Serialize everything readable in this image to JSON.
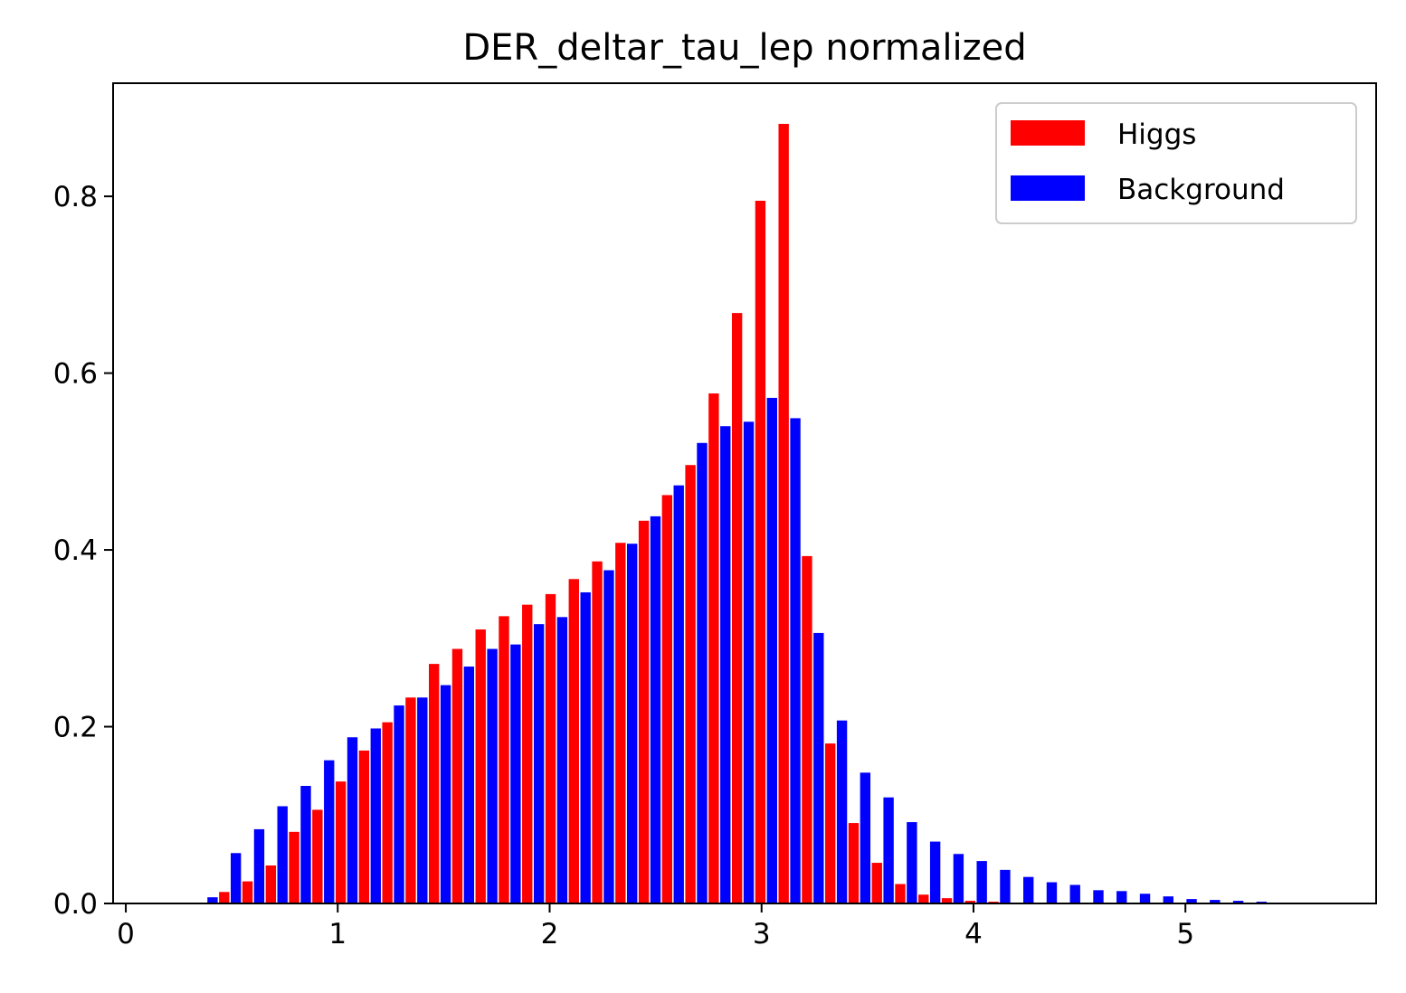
{
  "chart_data": {
    "type": "bar",
    "title": "DER_deltar_tau_lep normalized",
    "xlabel": "",
    "ylabel": "",
    "xlim": [
      -0.06,
      5.9
    ],
    "ylim": [
      0,
      0.928
    ],
    "x_ticks": [
      0,
      1,
      2,
      3,
      4,
      5
    ],
    "y_ticks": [
      0.0,
      0.2,
      0.4,
      0.6,
      0.8
    ],
    "x_tick_labels": [
      "0",
      "1",
      "2",
      "3",
      "4",
      "5"
    ],
    "y_tick_labels": [
      "0.0",
      "0.2",
      "0.4",
      "0.6",
      "0.8"
    ],
    "legend": "top-right",
    "grid": false,
    "bin_width": 0.11,
    "bins_left": [
      0.33,
      0.44,
      0.55,
      0.66,
      0.77,
      0.88,
      0.99,
      1.1,
      1.21,
      1.32,
      1.43,
      1.54,
      1.65,
      1.76,
      1.87,
      1.98,
      2.09,
      2.2,
      2.31,
      2.42,
      2.53,
      2.64,
      2.75,
      2.86,
      2.97,
      3.08,
      3.19,
      3.3,
      3.41,
      3.52,
      3.63,
      3.74,
      3.85,
      3.96,
      4.07,
      4.18,
      4.29,
      4.4,
      4.51,
      4.62,
      4.73,
      4.84,
      4.95,
      5.06,
      5.17,
      5.28
    ],
    "series": [
      {
        "name": "Higgs",
        "color": "#ff0000",
        "values": [
          0.0,
          0.013,
          0.025,
          0.043,
          0.081,
          0.106,
          0.138,
          0.173,
          0.205,
          0.233,
          0.271,
          0.288,
          0.31,
          0.325,
          0.338,
          0.35,
          0.367,
          0.387,
          0.408,
          0.433,
          0.462,
          0.496,
          0.577,
          0.668,
          0.795,
          0.882,
          0.393,
          0.181,
          0.091,
          0.046,
          0.022,
          0.01,
          0.006,
          0.003,
          0.002,
          0.001,
          0.001,
          0.0,
          0.0,
          0.0,
          0.0,
          0.0,
          0.0,
          0.0,
          0.0,
          0.0
        ]
      },
      {
        "name": "Background",
        "color": "#0000ff",
        "values": [
          0.007,
          0.057,
          0.084,
          0.11,
          0.133,
          0.162,
          0.188,
          0.198,
          0.224,
          0.233,
          0.247,
          0.268,
          0.288,
          0.293,
          0.316,
          0.324,
          0.352,
          0.377,
          0.407,
          0.438,
          0.473,
          0.521,
          0.54,
          0.545,
          0.572,
          0.549,
          0.306,
          0.207,
          0.148,
          0.12,
          0.092,
          0.07,
          0.056,
          0.048,
          0.038,
          0.03,
          0.024,
          0.021,
          0.015,
          0.014,
          0.011,
          0.008,
          0.005,
          0.004,
          0.003,
          0.002
        ]
      }
    ]
  }
}
